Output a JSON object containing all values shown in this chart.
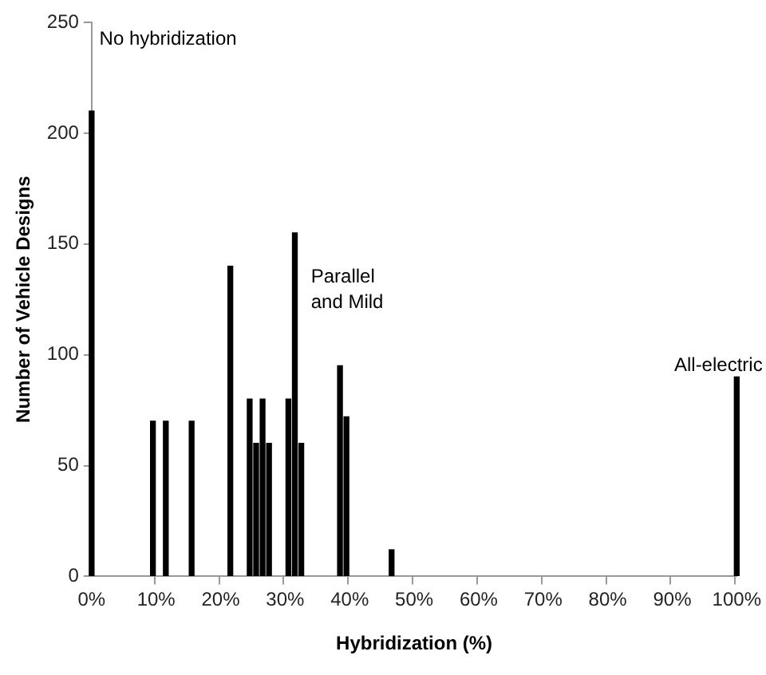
{
  "chart_data": {
    "type": "bar",
    "xlabel": "Hybridization (%)",
    "ylabel": "Number of Vehicle Designs",
    "color": "#000000",
    "categories": [
      "0%",
      null,
      null,
      null,
      null,
      null,
      null,
      null,
      null,
      null,
      null,
      null,
      null,
      null,
      null,
      null,
      null,
      null,
      null,
      null,
      "10%",
      null,
      null,
      null,
      null,
      null,
      null,
      null,
      null,
      null,
      null,
      null,
      null,
      null,
      null,
      null,
      null,
      null,
      null,
      null,
      "20%",
      null,
      null,
      null,
      null,
      null,
      null,
      null,
      null,
      null,
      null,
      null,
      null,
      null,
      null,
      null,
      null,
      null,
      null,
      null,
      "30%",
      null,
      null,
      null,
      null,
      null,
      null,
      null,
      null,
      null,
      null,
      null,
      null,
      null,
      null,
      null,
      null,
      null,
      null,
      null,
      "40%",
      null,
      null,
      null,
      null,
      null,
      null,
      null,
      null,
      null,
      null,
      null,
      null,
      null,
      null,
      null,
      null,
      null,
      null,
      null,
      "50%",
      null,
      null,
      null,
      null,
      null,
      null,
      null,
      null,
      null,
      null,
      null,
      null,
      null,
      null,
      null,
      null,
      null,
      null,
      null,
      "60%",
      null,
      null,
      null,
      null,
      null,
      null,
      null,
      null,
      null,
      null,
      null,
      null,
      null,
      null,
      null,
      null,
      null,
      null,
      null,
      "70%",
      null,
      null,
      null,
      null,
      null,
      null,
      null,
      null,
      null,
      null,
      null,
      null,
      null,
      null,
      null,
      null,
      null,
      null,
      null,
      "80%",
      null,
      null,
      null,
      null,
      null,
      null,
      null,
      null,
      null,
      null,
      null,
      null,
      null,
      null,
      null,
      null,
      null,
      null,
      null,
      "90%",
      null,
      null,
      null,
      null,
      null,
      null,
      null,
      null,
      null,
      null,
      null,
      null,
      null,
      null,
      null,
      null,
      null,
      null,
      null,
      "100%"
    ],
    "values": [
      210,
      null,
      null,
      null,
      null,
      null,
      null,
      null,
      null,
      null,
      null,
      null,
      null,
      null,
      null,
      null,
      null,
      null,
      null,
      70,
      null,
      null,
      null,
      70,
      null,
      null,
      null,
      null,
      null,
      null,
      null,
      70,
      null,
      null,
      null,
      null,
      null,
      null,
      null,
      null,
      null,
      null,
      null,
      140,
      null,
      null,
      null,
      null,
      null,
      80,
      null,
      60,
      null,
      80,
      null,
      60,
      null,
      null,
      null,
      null,
      null,
      80,
      null,
      155,
      null,
      60,
      null,
      null,
      null,
      null,
      null,
      null,
      null,
      null,
      null,
      null,
      null,
      95,
      null,
      72,
      null,
      null,
      null,
      null,
      null,
      null,
      null,
      null,
      null,
      null,
      null,
      null,
      null,
      12,
      null,
      null,
      null,
      null,
      null,
      null,
      null,
      null,
      null,
      null,
      null,
      null,
      null,
      null,
      null,
      null,
      null,
      null,
      null,
      null,
      null,
      null,
      null,
      null,
      null,
      null,
      null,
      null,
      null,
      null,
      null,
      null,
      null,
      null,
      null,
      null,
      null,
      null,
      null,
      null,
      null,
      null,
      null,
      null,
      null,
      null,
      null,
      null,
      null,
      null,
      null,
      null,
      null,
      null,
      null,
      null,
      null,
      null,
      null,
      null,
      null,
      null,
      null,
      null,
      null,
      null,
      null,
      null,
      null,
      null,
      null,
      null,
      null,
      null,
      null,
      null,
      null,
      null,
      null,
      null,
      null,
      null,
      null,
      null,
      null,
      null,
      null,
      null,
      null,
      null,
      null,
      null,
      null,
      null,
      null,
      null,
      null,
      null,
      null,
      null,
      null,
      null,
      null,
      null,
      null,
      null,
      90
    ],
    "ylim": [
      0,
      250
    ],
    "yticks": [
      0,
      50,
      100,
      150,
      200,
      250
    ],
    "grid": false,
    "legend": false,
    "annotations": [
      "No hybridization",
      "Parallel\nand Mild",
      "All-electric"
    ]
  }
}
